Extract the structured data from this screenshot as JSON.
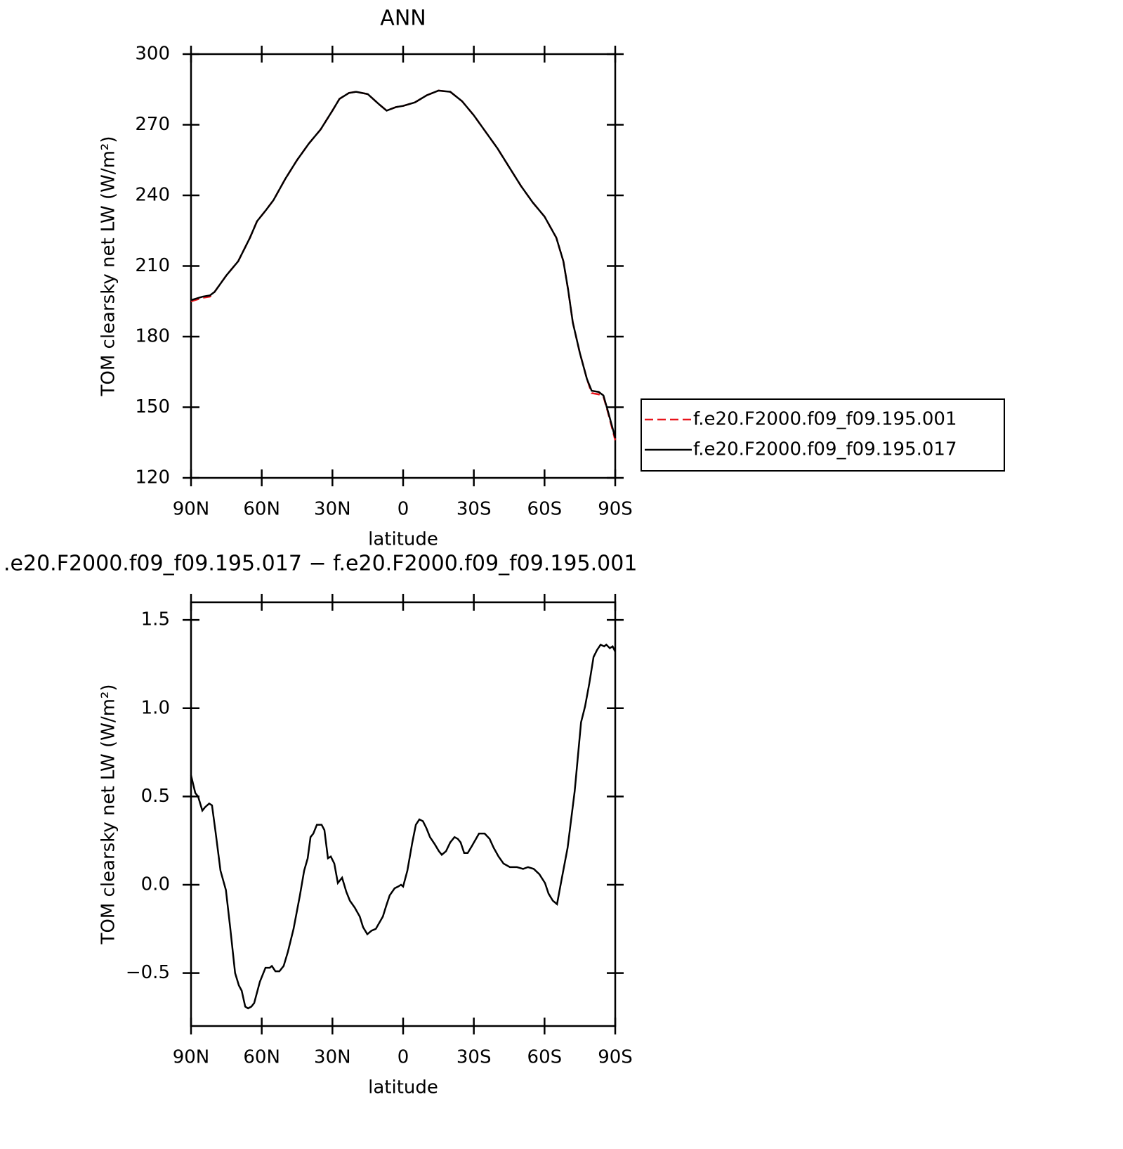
{
  "chart_data": [
    {
      "type": "line",
      "title": "ANN",
      "xlabel": "latitude",
      "ylabel": "TOM clearsky net LW (W/m²)",
      "xlim": [
        90,
        -90
      ],
      "xticks": [
        {
          "value": 90,
          "label": "90N"
        },
        {
          "value": 60,
          "label": "60N"
        },
        {
          "value": 30,
          "label": "30N"
        },
        0,
        {
          "value": -30,
          "label": "30S"
        },
        {
          "value": -60,
          "label": "60S"
        },
        {
          "value": -90,
          "label": "90S"
        }
      ],
      "ylim": [
        120,
        300
      ],
      "yticks": [
        120,
        150,
        180,
        210,
        240,
        270,
        300
      ],
      "x": [
        90,
        85,
        82,
        80,
        75,
        70,
        65,
        62,
        58,
        55,
        50,
        45,
        40,
        35,
        30,
        27,
        23,
        20,
        15,
        10,
        7,
        3,
        0,
        -5,
        -10,
        -15,
        -20,
        -25,
        -30,
        -35,
        -40,
        -45,
        -50,
        -55,
        -60,
        -65,
        -68,
        -70,
        -72,
        -75,
        -78,
        -80,
        -83,
        -85,
        -87,
        -90
      ],
      "legend": "right",
      "series": [
        {
          "name": "f.e20.F2000.f09_f09.195.001",
          "color": "#e8141b",
          "style": "dashed",
          "values": [
            195,
            196.5,
            197,
            199,
            206,
            212,
            222,
            229,
            234,
            238,
            247,
            255,
            262,
            268,
            276,
            281,
            283.5,
            284,
            283,
            278.5,
            276,
            277.5,
            278,
            279.5,
            282.5,
            284.5,
            284,
            280,
            274,
            267,
            260,
            252,
            244,
            237,
            231,
            222,
            212,
            200,
            186,
            173,
            162,
            156,
            155.5,
            154.5,
            147.5,
            136
          ]
        },
        {
          "name": "f.e20.F2000.f09_f09.195.017",
          "color": "#000000",
          "style": "solid",
          "values": [
            195.5,
            197,
            197.5,
            199,
            206,
            212,
            222,
            229,
            234,
            238,
            247,
            255,
            262,
            268,
            276,
            281,
            283.5,
            284,
            283,
            278.5,
            276,
            277.5,
            278,
            279.5,
            282.5,
            284.5,
            284,
            280,
            274,
            267,
            260,
            252,
            244,
            237,
            231,
            222,
            212,
            200,
            186,
            173,
            162,
            157,
            156.5,
            155,
            148,
            137
          ]
        }
      ]
    },
    {
      "type": "line",
      "title": ".e20.F2000.f09_f09.195.017 − f.e20.F2000.f09_f09.195.001",
      "xlabel": "latitude",
      "ylabel": "TOM clearsky net LW (W/m²)",
      "xlim": [
        90,
        -90
      ],
      "xticks": [
        {
          "value": 90,
          "label": "90N"
        },
        {
          "value": 60,
          "label": "60N"
        },
        {
          "value": 30,
          "label": "30N"
        },
        0,
        {
          "value": -30,
          "label": "30S"
        },
        {
          "value": -60,
          "label": "60S"
        },
        {
          "value": -90,
          "label": "90S"
        }
      ],
      "ylim": [
        -0.8,
        1.6
      ],
      "yticks": [
        {
          "value": -0.5,
          "label": "−0.5"
        },
        {
          "value": 0,
          "label": "0.0"
        },
        0.5,
        {
          "value": 1,
          "label": "1.0"
        },
        1.5
      ],
      "x": [
        90,
        88.2,
        87.0,
        85.2,
        84.0,
        82.3,
        81.1,
        79.6,
        77.5,
        75.2,
        73.4,
        71.3,
        69.7,
        68.5,
        67.0,
        65.8,
        64.4,
        63.2,
        60.8,
        58.4,
        56.6,
        55.7,
        54.2,
        52.5,
        50.7,
        48.9,
        46.5,
        43.8,
        42.0,
        40.5,
        39.3,
        38.1,
        36.6,
        34.6,
        33.4,
        31.9,
        30.7,
        29.2,
        27.7,
        25.9,
        24.1,
        22.6,
        20.5,
        18.4,
        17.0,
        15.2,
        13.4,
        11.6,
        8.6,
        7.2,
        5.7,
        3.6,
        2.1,
        0.9,
        0.0,
        -1.8,
        -3.9,
        -5.4,
        -6.9,
        -8.4,
        -9.9,
        -11.4,
        -13.4,
        -15.2,
        -16.4,
        -18.2,
        -20.0,
        -21.8,
        -23.2,
        -24.4,
        -25.9,
        -27.4,
        -29.2,
        -32.2,
        -34.6,
        -36.7,
        -38.4,
        -40.5,
        -42.6,
        -45.3,
        -48.3,
        -50.9,
        -53.0,
        -55.4,
        -57.8,
        -60.2,
        -61.7,
        -63.5,
        -65.3,
        -67.1,
        -69.8,
        -72.8,
        -75.5,
        -77.2,
        -79.0,
        -80.8,
        -82.3,
        -83.8,
        -85.3,
        -86.2,
        -87.7,
        -88.9,
        -90
      ],
      "series": [
        {
          "color": "#000000",
          "style": "solid",
          "values": [
            0.62,
            0.52,
            0.5,
            0.42,
            0.44,
            0.46,
            0.45,
            0.3,
            0.08,
            -0.03,
            -0.24,
            -0.5,
            -0.57,
            -0.6,
            -0.69,
            -0.7,
            -0.69,
            -0.67,
            -0.55,
            -0.47,
            -0.47,
            -0.46,
            -0.49,
            -0.49,
            -0.46,
            -0.38,
            -0.25,
            -0.06,
            0.08,
            0.15,
            0.27,
            0.29,
            0.34,
            0.34,
            0.31,
            0.15,
            0.16,
            0.12,
            0.01,
            0.04,
            -0.04,
            -0.09,
            -0.13,
            -0.18,
            -0.24,
            -0.28,
            -0.26,
            -0.25,
            -0.18,
            -0.12,
            -0.06,
            -0.02,
            -0.01,
            0.0,
            -0.01,
            0.08,
            0.24,
            0.34,
            0.37,
            0.36,
            0.32,
            0.27,
            0.23,
            0.19,
            0.17,
            0.19,
            0.24,
            0.27,
            0.26,
            0.24,
            0.18,
            0.18,
            0.22,
            0.29,
            0.29,
            0.26,
            0.21,
            0.16,
            0.12,
            0.1,
            0.1,
            0.09,
            0.1,
            0.09,
            0.06,
            0.01,
            -0.05,
            -0.09,
            -0.11,
            0.02,
            0.21,
            0.53,
            0.92,
            1.01,
            1.14,
            1.29,
            1.33,
            1.36,
            1.35,
            1.36,
            1.34,
            1.35,
            1.32
          ]
        }
      ]
    }
  ]
}
